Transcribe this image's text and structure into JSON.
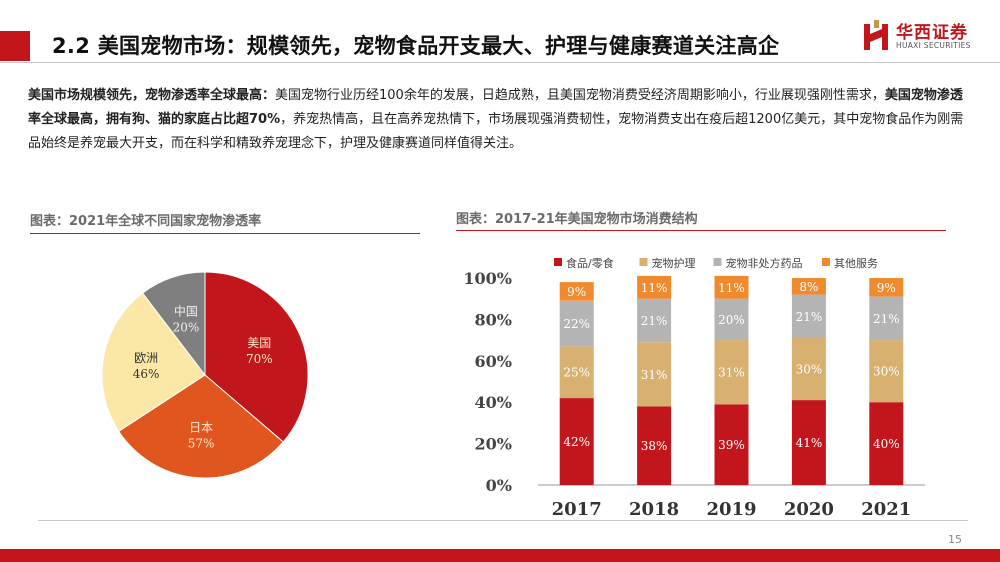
{
  "header": {
    "title": "2.2 美国宠物市场：规模领先，宠物食品开支最大、护理与健康赛道关注高企",
    "logo_cn": "华西证券",
    "logo_en": "HUAXI SECURITIES"
  },
  "intro": {
    "p1_bold": "美国市场规模领先，宠物渗透率全球最高：",
    "p1_text": "美国宠物行业历经100余年的发展，日趋成熟，且美国宠物消费受经济周期影响小，行业展现强刚性需求，",
    "p2_bold": "美国宠物渗透率全球最高，拥有狗、猫的家庭占比超70%",
    "p2_text": "，养宠热情高，且在高养宠热情下，市场展现强消费韧性，宠物消费支出在疫后超1200亿美元，其中宠物食品作为刚需品始终是养宠最大开支，而在科学和精致养宠理念下，护理及健康赛道同样值得关注。"
  },
  "figures": {
    "left_title": "图表：2021年全球不同国家宠物渗透率",
    "right_title": "图表：2017-21年美国宠物市场消费结构"
  },
  "colors": {
    "brand_red": "#c3161c",
    "food": "#c3161c",
    "care": "#d8b070",
    "drugs": "#b4b4b4",
    "other": "#ef8a2e",
    "pie_us": "#c0161c",
    "pie_jp": "#e0561e",
    "pie_eu": "#fbe8a6",
    "pie_cn": "#7f7f7f"
  },
  "chart_data": [
    {
      "type": "pie",
      "title": "图表：2021年全球不同国家宠物渗透率",
      "slices": [
        {
          "label": "美国",
          "value": 70,
          "display": "70%",
          "color": "#c0161c",
          "text_color": "#fde7c8"
        },
        {
          "label": "日本",
          "value": 57,
          "display": "57%",
          "color": "#e0561e",
          "text_color": "#fde7c8"
        },
        {
          "label": "欧洲",
          "value": 46,
          "display": "46%",
          "color": "#fbe8a6",
          "text_color": "#333333"
        },
        {
          "label": "中国",
          "value": 20,
          "display": "20%",
          "color": "#7f7f7f",
          "text_color": "#eeeeee"
        }
      ]
    },
    {
      "type": "bar",
      "stacked": true,
      "title": "图表：2017-21年美国宠物市场消费结构",
      "categories": [
        "2017",
        "2018",
        "2019",
        "2020",
        "2021"
      ],
      "series": [
        {
          "name": "食品/零食",
          "color": "#c3161c",
          "label_color": "#ffffff",
          "values": [
            42,
            38,
            39,
            41,
            40
          ]
        },
        {
          "name": "宠物护理",
          "color": "#d8b070",
          "label_color": "#ffffff",
          "values": [
            25,
            31,
            31,
            30,
            30
          ]
        },
        {
          "name": "宠物非处方药品",
          "color": "#b4b4b4",
          "label_color": "#ffffff",
          "values": [
            22,
            21,
            20,
            21,
            21
          ]
        },
        {
          "name": "其他服务",
          "color": "#ef8a2e",
          "label_color": "#ffffff",
          "values": [
            9,
            11,
            11,
            8,
            9
          ]
        }
      ],
      "ylim": [
        0,
        100
      ],
      "yticks": [
        "0%",
        "20%",
        "40%",
        "60%",
        "80%",
        "100%"
      ],
      "legend": "top",
      "grid": false
    }
  ],
  "footer": {
    "page_number": "15"
  }
}
